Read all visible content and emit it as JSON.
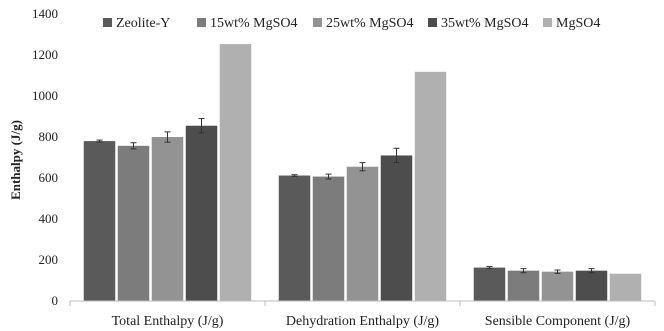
{
  "chart_data": {
    "type": "bar",
    "title": "",
    "xlabel": "",
    "ylabel": "Enthalpy (J/g)",
    "ylim": [
      0,
      1400
    ],
    "yticks": [
      0,
      200,
      400,
      600,
      800,
      1000,
      1200,
      1400
    ],
    "grid": false,
    "legend_position": "top",
    "categories": [
      "Total Enthalpy (J/g)",
      "Dehydration Enthalpy (J/g)",
      "Sensible Component (J/g)"
    ],
    "series": [
      {
        "name": "Zeolite-Y",
        "color": "#5a5a5a",
        "values": [
          780,
          612,
          163
        ],
        "errors": [
          5,
          4,
          5
        ]
      },
      {
        "name": "15wt% MgSO4",
        "color": "#7c7c7c",
        "values": [
          757,
          607,
          148
        ],
        "errors": [
          15,
          12,
          10
        ]
      },
      {
        "name": "25wt% MgSO4",
        "color": "#939393",
        "values": [
          800,
          655,
          143
        ],
        "errors": [
          25,
          20,
          8
        ]
      },
      {
        "name": "35wt% MgSO4",
        "color": "#4d4d4d",
        "values": [
          855,
          710,
          148
        ],
        "errors": [
          35,
          35,
          10
        ]
      },
      {
        "name": "MgSO4",
        "color": "#b0b0b0",
        "values": [
          1253,
          1118,
          133
        ],
        "errors": [
          0,
          0,
          0
        ]
      }
    ]
  }
}
